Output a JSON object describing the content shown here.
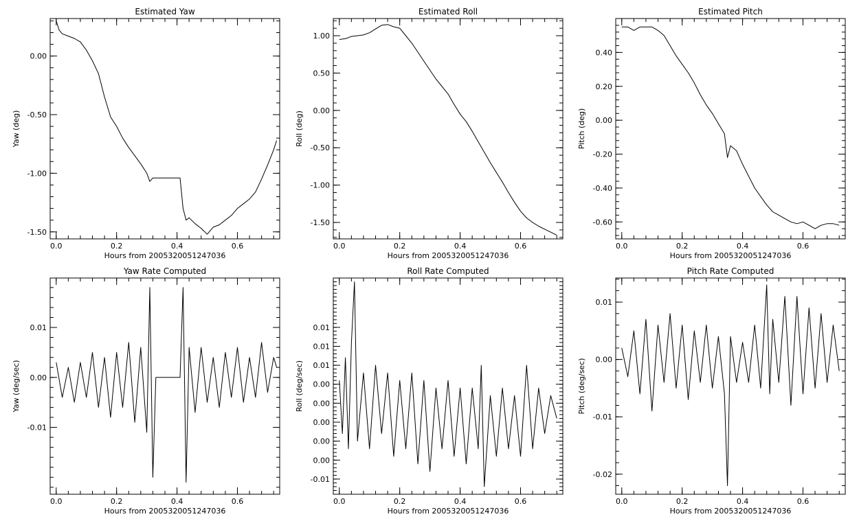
{
  "chart_data": [
    {
      "type": "line",
      "title": "Estimated Yaw",
      "xlabel": "Hours from 2005320051247036",
      "ylabel": "Yaw (deg)",
      "xlim": [
        -0.02,
        0.74
      ],
      "ylim": [
        -1.56,
        0.32
      ],
      "xticks": [
        0.0,
        0.2,
        0.4,
        0.6
      ],
      "xtick_labels": [
        "0.0",
        "0.2",
        "0.4",
        "0.6"
      ],
      "yticks": [
        -1.5,
        -1.0,
        -0.5,
        0.0
      ],
      "ytick_labels": [
        "-1.50",
        "-1.00",
        "-0.50",
        "0.00"
      ],
      "x": [
        0.0,
        0.01,
        0.02,
        0.04,
        0.06,
        0.08,
        0.1,
        0.12,
        0.14,
        0.15,
        0.16,
        0.18,
        0.2,
        0.22,
        0.24,
        0.26,
        0.28,
        0.3,
        0.31,
        0.32,
        0.35,
        0.38,
        0.41,
        0.42,
        0.43,
        0.44,
        0.46,
        0.48,
        0.5,
        0.52,
        0.54,
        0.56,
        0.58,
        0.6,
        0.62,
        0.64,
        0.66,
        0.68,
        0.7,
        0.72,
        0.73
      ],
      "y": [
        0.3,
        0.22,
        0.19,
        0.17,
        0.15,
        0.12,
        0.05,
        -0.04,
        -0.15,
        -0.25,
        -0.35,
        -0.52,
        -0.6,
        -0.7,
        -0.78,
        -0.85,
        -0.92,
        -1.0,
        -1.07,
        -1.04,
        -1.04,
        -1.04,
        -1.04,
        -1.3,
        -1.4,
        -1.38,
        -1.43,
        -1.47,
        -1.52,
        -1.46,
        -1.44,
        -1.4,
        -1.36,
        -1.3,
        -1.26,
        -1.22,
        -1.16,
        -1.05,
        -0.93,
        -0.8,
        -0.72
      ]
    },
    {
      "type": "line",
      "title": "Estimated Roll",
      "xlabel": "Hours from 2005320051247036",
      "ylabel": "Roll (deg)",
      "xlim": [
        -0.02,
        0.74
      ],
      "ylim": [
        -1.72,
        1.23
      ],
      "xticks": [
        0.0,
        0.2,
        0.4,
        0.6
      ],
      "xtick_labels": [
        "0.0",
        "0.2",
        "0.4",
        "0.6"
      ],
      "yticks": [
        -1.5,
        -1.0,
        -0.5,
        0.0,
        0.5,
        1.0
      ],
      "ytick_labels": [
        "-1.50",
        "-1.00",
        "-0.50",
        "0.00",
        "0.50",
        "1.00"
      ],
      "x": [
        0.0,
        0.02,
        0.04,
        0.06,
        0.08,
        0.1,
        0.12,
        0.14,
        0.16,
        0.18,
        0.2,
        0.22,
        0.24,
        0.26,
        0.28,
        0.3,
        0.32,
        0.34,
        0.36,
        0.38,
        0.4,
        0.42,
        0.44,
        0.46,
        0.48,
        0.5,
        0.52,
        0.54,
        0.56,
        0.58,
        0.6,
        0.62,
        0.64,
        0.66,
        0.68,
        0.7,
        0.72
      ],
      "y": [
        0.95,
        0.96,
        0.99,
        1.0,
        1.01,
        1.04,
        1.09,
        1.14,
        1.15,
        1.12,
        1.1,
        1.0,
        0.9,
        0.78,
        0.66,
        0.54,
        0.42,
        0.32,
        0.22,
        0.08,
        -0.05,
        -0.15,
        -0.28,
        -0.42,
        -0.56,
        -0.7,
        -0.83,
        -0.96,
        -1.1,
        -1.23,
        -1.35,
        -1.44,
        -1.5,
        -1.55,
        -1.59,
        -1.63,
        -1.67
      ]
    },
    {
      "type": "line",
      "title": "Estimated Pitch",
      "xlabel": "Hours from 2005320051247036",
      "ylabel": "Pitch (deg)",
      "xlim": [
        -0.02,
        0.74
      ],
      "ylim": [
        -0.7,
        0.6
      ],
      "xticks": [
        0.0,
        0.2,
        0.4,
        0.6
      ],
      "xtick_labels": [
        "0.0",
        "0.2",
        "0.4",
        "0.6"
      ],
      "yticks": [
        -0.6,
        -0.4,
        -0.2,
        0.0,
        0.2,
        0.4
      ],
      "ytick_labels": [
        "-0.60",
        "-0.40",
        "-0.20",
        "0.00",
        "0.20",
        "0.40"
      ],
      "x": [
        0.0,
        0.02,
        0.04,
        0.06,
        0.08,
        0.1,
        0.12,
        0.14,
        0.16,
        0.18,
        0.2,
        0.22,
        0.24,
        0.26,
        0.28,
        0.3,
        0.32,
        0.34,
        0.35,
        0.36,
        0.38,
        0.4,
        0.42,
        0.44,
        0.46,
        0.48,
        0.5,
        0.52,
        0.54,
        0.56,
        0.58,
        0.6,
        0.62,
        0.64,
        0.66,
        0.68,
        0.7,
        0.72
      ],
      "y": [
        0.55,
        0.55,
        0.53,
        0.55,
        0.55,
        0.55,
        0.53,
        0.5,
        0.44,
        0.38,
        0.33,
        0.28,
        0.22,
        0.15,
        0.09,
        0.04,
        -0.02,
        -0.08,
        -0.22,
        -0.15,
        -0.18,
        -0.26,
        -0.33,
        -0.4,
        -0.45,
        -0.5,
        -0.54,
        -0.56,
        -0.58,
        -0.6,
        -0.61,
        -0.6,
        -0.62,
        -0.64,
        -0.62,
        -0.61,
        -0.61,
        -0.62
      ]
    },
    {
      "type": "line",
      "title": "Yaw Rate Computed",
      "xlabel": "Hours from 2005320051247036",
      "ylabel": "Yaw (deg/sec)",
      "xlim": [
        -0.02,
        0.74
      ],
      "ylim": [
        -0.0234,
        0.0199
      ],
      "xticks": [
        0.0,
        0.2,
        0.4,
        0.6
      ],
      "xtick_labels": [
        "0.0",
        "0.2",
        "0.4",
        "0.6"
      ],
      "yticks": [
        -0.01,
        0.0,
        0.01
      ],
      "ytick_labels": [
        "-0.01",
        "0.00",
        "0.01"
      ],
      "x": [
        0.0,
        0.02,
        0.04,
        0.06,
        0.08,
        0.1,
        0.12,
        0.14,
        0.16,
        0.18,
        0.2,
        0.22,
        0.24,
        0.26,
        0.28,
        0.3,
        0.31,
        0.32,
        0.33,
        0.37,
        0.41,
        0.42,
        0.43,
        0.44,
        0.46,
        0.48,
        0.5,
        0.52,
        0.54,
        0.56,
        0.58,
        0.6,
        0.62,
        0.64,
        0.66,
        0.68,
        0.7,
        0.72,
        0.73
      ],
      "y": [
        0.003,
        -0.004,
        0.002,
        -0.005,
        0.003,
        -0.004,
        0.005,
        -0.006,
        0.004,
        -0.008,
        0.005,
        -0.006,
        0.007,
        -0.009,
        0.006,
        -0.011,
        0.018,
        -0.02,
        0.0,
        0.0,
        0.0,
        0.018,
        -0.021,
        0.006,
        -0.007,
        0.006,
        -0.005,
        0.004,
        -0.006,
        0.005,
        -0.004,
        0.006,
        -0.005,
        0.004,
        -0.004,
        0.007,
        -0.003,
        0.004,
        0.002
      ]
    },
    {
      "type": "line",
      "title": "Roll Rate Computed",
      "xlabel": "Hours from 2005320051247036",
      "ylabel": "Roll (deg/sec)",
      "xlim": [
        -0.02,
        0.74
      ],
      "ylim": [
        -0.012,
        0.0165
      ],
      "xticks": [
        0.0,
        0.2,
        0.4,
        0.6
      ],
      "xtick_labels": [
        "0.0",
        "0.2",
        "0.4",
        "0.6"
      ],
      "yticks": [
        -0.01,
        -0.0075,
        -0.005,
        -0.0025,
        0.0,
        0.0025,
        0.005,
        0.0075,
        0.01
      ],
      "ytick_labels": [
        "-0.01",
        "0.00",
        "0.00",
        "0.00",
        "0.00",
        "0.00",
        "0.01",
        "0.01",
        "0.01"
      ],
      "x": [
        0.0,
        0.01,
        0.02,
        0.03,
        0.04,
        0.05,
        0.06,
        0.08,
        0.1,
        0.12,
        0.14,
        0.16,
        0.18,
        0.2,
        0.22,
        0.24,
        0.26,
        0.28,
        0.3,
        0.32,
        0.34,
        0.36,
        0.38,
        0.4,
        0.42,
        0.44,
        0.46,
        0.47,
        0.48,
        0.5,
        0.52,
        0.54,
        0.56,
        0.58,
        0.6,
        0.62,
        0.64,
        0.66,
        0.68,
        0.7,
        0.72
      ],
      "y": [
        0.003,
        -0.004,
        0.006,
        -0.006,
        0.008,
        0.016,
        -0.005,
        0.004,
        -0.006,
        0.005,
        -0.004,
        0.004,
        -0.007,
        0.003,
        -0.006,
        0.004,
        -0.008,
        0.003,
        -0.009,
        0.002,
        -0.006,
        0.003,
        -0.007,
        0.002,
        -0.008,
        0.002,
        -0.006,
        0.005,
        -0.011,
        0.001,
        -0.007,
        0.002,
        -0.006,
        0.001,
        -0.007,
        0.005,
        -0.006,
        0.002,
        -0.004,
        0.001,
        -0.002
      ]
    },
    {
      "type": "line",
      "title": "Pitch Rate Computed",
      "xlabel": "Hours from 2005320051247036",
      "ylabel": "Pitch (deg/sec)",
      "xlim": [
        -0.02,
        0.74
      ],
      "ylim": [
        -0.0235,
        0.0142
      ],
      "xticks": [
        0.0,
        0.2,
        0.4,
        0.6
      ],
      "xtick_labels": [
        "0.0",
        "0.2",
        "0.4",
        "0.6"
      ],
      "yticks": [
        -0.02,
        -0.01,
        0.0,
        0.01
      ],
      "ytick_labels": [
        "-0.02",
        "-0.01",
        "0.00",
        "0.01"
      ],
      "x": [
        0.0,
        0.02,
        0.04,
        0.06,
        0.08,
        0.1,
        0.12,
        0.14,
        0.16,
        0.18,
        0.2,
        0.22,
        0.24,
        0.26,
        0.28,
        0.3,
        0.32,
        0.34,
        0.35,
        0.36,
        0.38,
        0.4,
        0.42,
        0.44,
        0.46,
        0.48,
        0.49,
        0.5,
        0.52,
        0.54,
        0.56,
        0.58,
        0.6,
        0.62,
        0.64,
        0.66,
        0.68,
        0.7,
        0.72
      ],
      "y": [
        0.002,
        -0.003,
        0.005,
        -0.006,
        0.007,
        -0.009,
        0.006,
        -0.004,
        0.008,
        -0.005,
        0.006,
        -0.007,
        0.005,
        -0.004,
        0.006,
        -0.005,
        0.004,
        -0.006,
        -0.022,
        0.004,
        -0.004,
        0.003,
        -0.004,
        0.006,
        -0.005,
        0.013,
        -0.006,
        0.007,
        -0.004,
        0.011,
        -0.008,
        0.011,
        -0.006,
        0.009,
        -0.005,
        0.008,
        -0.004,
        0.006,
        -0.002
      ]
    }
  ]
}
